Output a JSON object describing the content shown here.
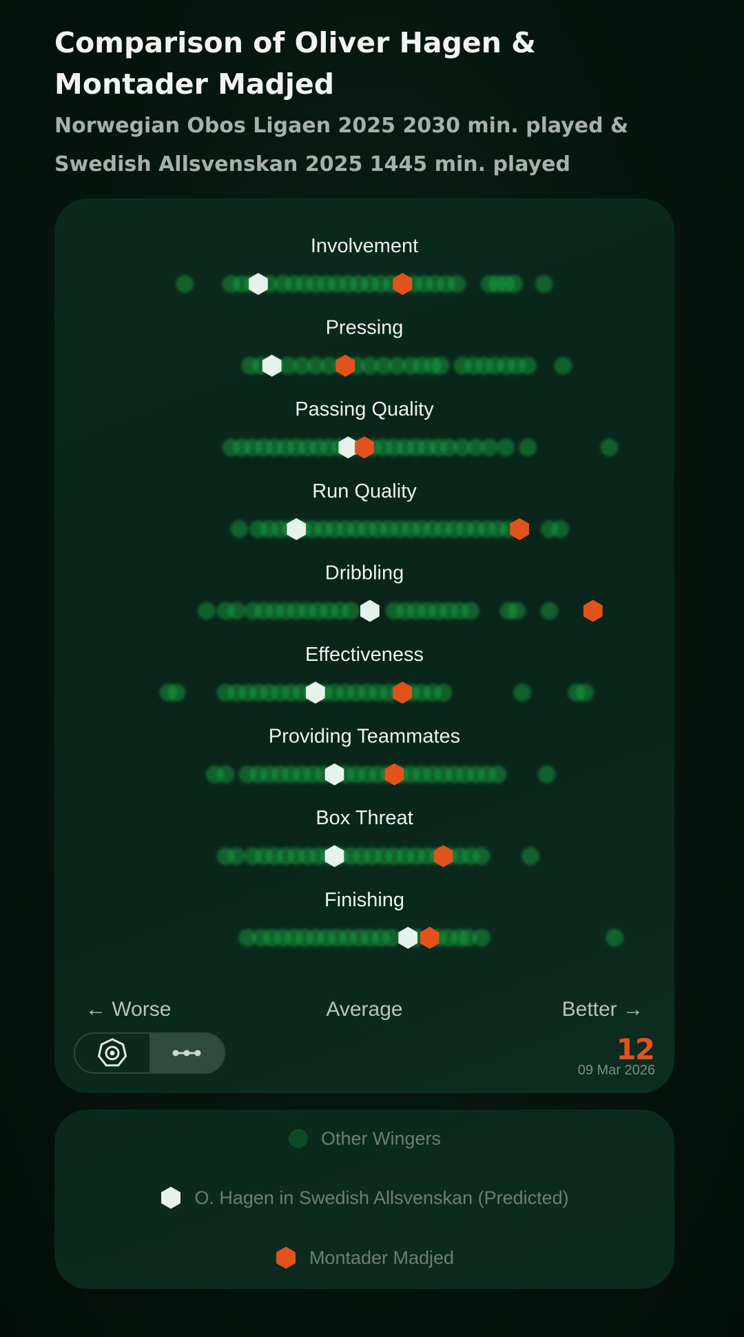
{
  "title": "Comparison of Oliver Hagen & Montader Madjed",
  "subtitle": "Norwegian Obos Ligaen 2025 2030 min. played & Swedish Allsvenskan 2025 1445 min. played",
  "axis": {
    "left": "← Worse",
    "center": "Average",
    "right": "Better →"
  },
  "brand": "12",
  "date": "09 Mar 2026",
  "colors": {
    "others": "#11a83f",
    "hagen": "#e6f2ec",
    "madjed": "#e3521a"
  },
  "legend": [
    {
      "label": "Other Wingers",
      "marker": "circle",
      "color": "#0d4a26"
    },
    {
      "label": "O. Hagen in Swedish Allsvenskan (Predicted)",
      "marker": "hexagon",
      "color": "#e6f2ec"
    },
    {
      "label": "Montader Madjed",
      "marker": "hexagon",
      "color": "#e3521a"
    }
  ],
  "chart_data": {
    "type": "scatter",
    "title": "Comparison of Oliver Hagen & Montader Madjed",
    "x_scale": "relative (Worse → Average → Better)",
    "xlim": [
      -1,
      1
    ],
    "categories": [
      "Involvement",
      "Pressing",
      "Passing Quality",
      "Run Quality",
      "Dribbling",
      "Effectiveness",
      "Providing Teammates",
      "Box Threat",
      "Finishing"
    ],
    "series": [
      {
        "name": "O. Hagen in Swedish Allsvenskan (Predicted)",
        "values": [
          -0.39,
          -0.34,
          -0.06,
          -0.25,
          0.02,
          -0.18,
          -0.11,
          -0.11,
          0.16
        ]
      },
      {
        "name": "Montader Madjed",
        "values": [
          0.14,
          -0.07,
          0.0,
          0.57,
          0.84,
          0.14,
          0.11,
          0.29,
          0.24
        ]
      },
      {
        "name": "Other Wingers",
        "values": [
          [
            -0.66,
            -0.49,
            -0.45,
            -0.41,
            -0.35,
            -0.3,
            -0.26,
            -0.22,
            -0.18,
            -0.14,
            -0.1,
            -0.06,
            -0.02,
            0.02,
            0.06,
            0.1,
            0.14,
            0.18,
            0.22,
            0.26,
            0.3,
            0.34,
            0.46,
            0.49,
            0.52,
            0.55,
            0.66
          ],
          [
            -0.42,
            -0.38,
            -0.33,
            -0.28,
            -0.23,
            -0.18,
            -0.13,
            -0.08,
            -0.03,
            0.02,
            0.07,
            0.12,
            0.17,
            0.21,
            0.25,
            0.28,
            0.36,
            0.4,
            0.44,
            0.48,
            0.52,
            0.56,
            0.6,
            0.73
          ],
          [
            -0.49,
            -0.45,
            -0.41,
            -0.37,
            -0.33,
            -0.29,
            -0.25,
            -0.21,
            -0.17,
            -0.13,
            -0.09,
            -0.05,
            -0.01,
            0.03,
            0.07,
            0.11,
            0.15,
            0.19,
            0.23,
            0.27,
            0.31,
            0.36,
            0.41,
            0.46,
            0.52,
            0.6,
            0.9
          ],
          [
            -0.46,
            -0.39,
            -0.35,
            -0.31,
            -0.27,
            -0.23,
            -0.19,
            -0.15,
            -0.11,
            -0.07,
            -0.03,
            0.01,
            0.05,
            0.09,
            0.13,
            0.17,
            0.21,
            0.25,
            0.29,
            0.33,
            0.37,
            0.41,
            0.45,
            0.49,
            0.53,
            0.68,
            0.72
          ],
          [
            -0.58,
            -0.51,
            -0.47,
            -0.41,
            -0.37,
            -0.33,
            -0.29,
            -0.25,
            -0.21,
            -0.17,
            -0.13,
            -0.09,
            -0.05,
            0.11,
            0.15,
            0.19,
            0.23,
            0.27,
            0.31,
            0.35,
            0.39,
            0.53,
            0.56,
            0.68
          ],
          [
            -0.72,
            -0.69,
            -0.51,
            -0.47,
            -0.43,
            -0.39,
            -0.35,
            -0.31,
            -0.27,
            -0.23,
            -0.19,
            -0.15,
            -0.11,
            -0.07,
            -0.03,
            0.01,
            0.05,
            0.09,
            0.13,
            0.17,
            0.21,
            0.25,
            0.29,
            0.58,
            0.78,
            0.81
          ],
          [
            -0.55,
            -0.51,
            -0.43,
            -0.39,
            -0.35,
            -0.31,
            -0.27,
            -0.23,
            -0.19,
            -0.15,
            -0.11,
            -0.07,
            -0.03,
            0.01,
            0.05,
            0.09,
            0.13,
            0.17,
            0.21,
            0.25,
            0.29,
            0.33,
            0.37,
            0.41,
            0.45,
            0.49,
            0.67
          ],
          [
            -0.51,
            -0.47,
            -0.41,
            -0.37,
            -0.33,
            -0.29,
            -0.25,
            -0.21,
            -0.17,
            -0.13,
            -0.09,
            -0.05,
            -0.01,
            0.03,
            0.07,
            0.11,
            0.15,
            0.19,
            0.23,
            0.27,
            0.31,
            0.35,
            0.39,
            0.43,
            0.61
          ],
          [
            -0.43,
            -0.38,
            -0.34,
            -0.3,
            -0.26,
            -0.22,
            -0.18,
            -0.14,
            -0.1,
            -0.06,
            -0.02,
            0.02,
            0.06,
            0.1,
            0.19,
            0.27,
            0.31,
            0.35,
            0.38,
            0.43,
            0.92
          ]
        ]
      }
    ]
  }
}
